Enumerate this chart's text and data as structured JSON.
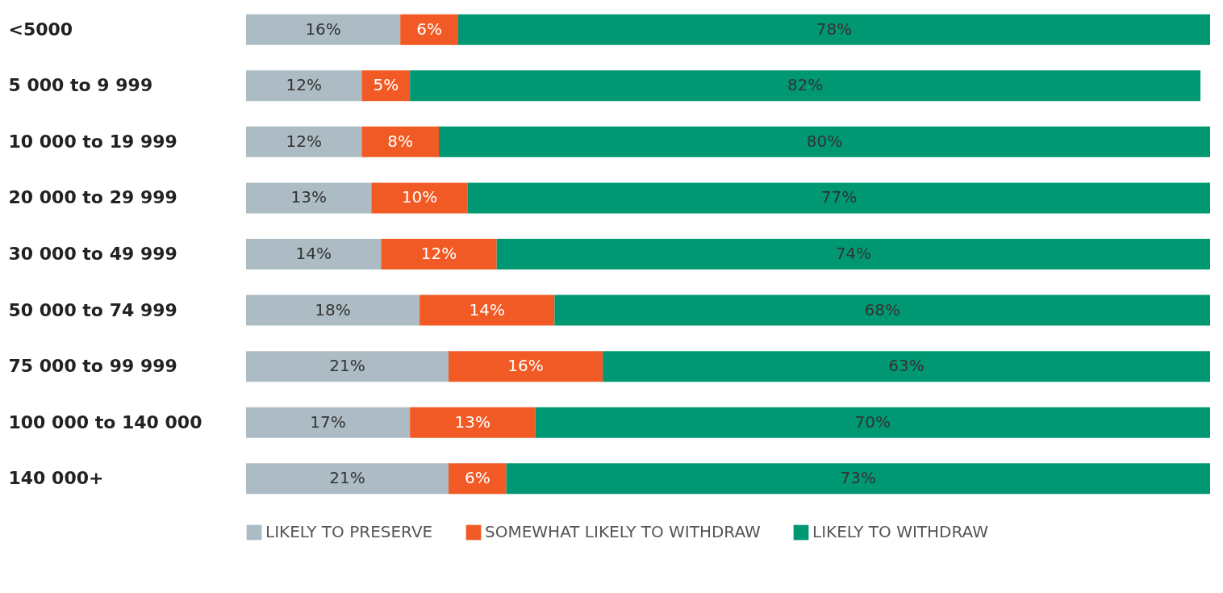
{
  "chart_data": {
    "type": "bar",
    "orientation": "horizontal",
    "stacked": true,
    "categories": [
      "<5000",
      "5 000 to 9 999",
      "10 000 to 19 999",
      "20 000 to 29 999",
      "30 000 to 49 999",
      "50 000 to 74 999",
      "75 000 to 99 999",
      "100 000 to 140 000",
      "140 000+"
    ],
    "series": [
      {
        "name": "LIKELY TO PRESERVE",
        "color": "#adbcc4",
        "values": [
          16,
          12,
          12,
          13,
          14,
          18,
          21,
          17,
          21
        ],
        "value_labels": [
          "16%",
          "12%",
          "12%",
          "13%",
          "14%",
          "18%",
          "21%",
          "17%",
          "21%"
        ]
      },
      {
        "name": "SOMEWHAT LIKELY TO WITHDRAW",
        "color": "#f15a24",
        "values": [
          6,
          5,
          8,
          10,
          12,
          14,
          16,
          13,
          6
        ],
        "value_labels": [
          "6%",
          "5%",
          "8%",
          "10%",
          "12%",
          "14%",
          "16%",
          "13%",
          "6%"
        ]
      },
      {
        "name": "LIKELY TO WITHDRAW",
        "color": "#009873",
        "values": [
          78,
          82,
          80,
          77,
          74,
          68,
          63,
          70,
          73
        ],
        "value_labels": [
          "78%",
          "82%",
          "80%",
          "77%",
          "74%",
          "68%",
          "63%",
          "70%",
          "73%"
        ]
      }
    ],
    "xlim": [
      0,
      100
    ],
    "tick_labels": "y",
    "legend": "bottom",
    "grid": false
  }
}
